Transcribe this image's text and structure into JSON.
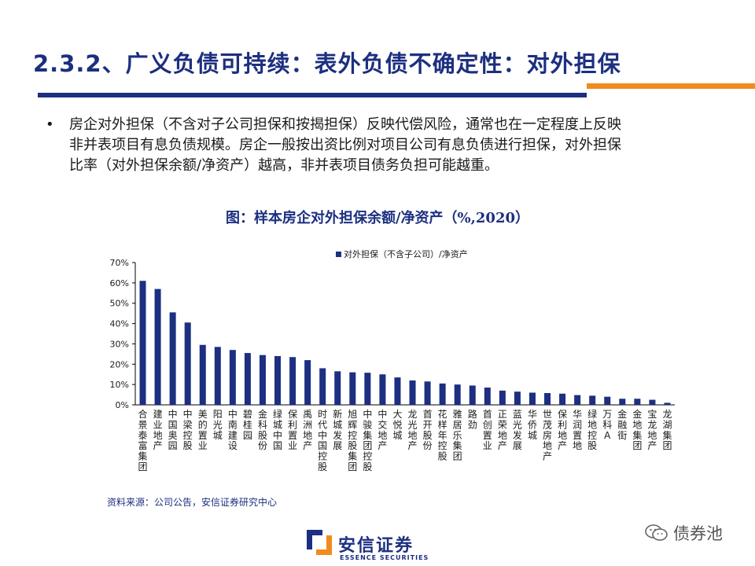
{
  "header": {
    "title": "2.3.2、广义负债可持续：表外负债不确定性：对外担保"
  },
  "bullet": {
    "marker": "•",
    "lines": [
      "房企对外担保（不含对子公司担保和按揭担保）反映代偿风险，通常也在一定程度上反映",
      "非并表项目有息负债规模。房企一般按出资比例对项目公司有息负债进行担保，对外担保",
      "比率（对外担保余额/净资产）越高，非并表项目债务负担可能越重。"
    ]
  },
  "figure": {
    "caption": "图：样本房企对外担保余额/净资产（%,2020）",
    "source": "资料来源：公司公告，安信证券研究中心"
  },
  "footer": {
    "logo_cn": "安信证券",
    "logo_en": "ESSENCE SECURITIES",
    "watermark": "债券池",
    "brand_color": "#1c2f80",
    "accent_color": "#f08c1e"
  },
  "chart_data": {
    "type": "bar",
    "title": "图：样本房企对外担保余额/净资产（%,2020）",
    "legend": {
      "position": "top",
      "entries": [
        "对外担保（不含子公司）/净资产"
      ]
    },
    "ylim": [
      0,
      70
    ],
    "yticks": [
      "0%",
      "10%",
      "20%",
      "30%",
      "40%",
      "50%",
      "60%",
      "70%"
    ],
    "grid": false,
    "bar_color": "#1c2f80",
    "categories": [
      "合景泰富集团",
      "建业地产",
      "中国奥园",
      "中梁控股",
      "美的置业",
      "阳光城",
      "中南建设",
      "碧桂园",
      "金科股份",
      "绿城中国",
      "保利置业",
      "禹洲地产",
      "时代中国控股",
      "新城发展",
      "旭辉控股集团",
      "中骏集团控股",
      "中交地产",
      "大悦城",
      "龙光地产",
      "首开股份",
      "花样年控股",
      "雅居乐集团",
      "路劲",
      "首创置业",
      "正荣地产",
      "蓝光发展",
      "华侨城",
      "世茂房地产",
      "保利地产",
      "华润置地",
      "绿地控股",
      "万科A",
      "金融街",
      "金地集团",
      "宝龙地产",
      "龙湖集团"
    ],
    "series": [
      {
        "name": "对外担保（不含子公司）/净资产",
        "values": [
          61,
          57,
          45.5,
          40.5,
          29.5,
          28.5,
          27,
          25.5,
          24.5,
          24,
          23.5,
          22,
          18,
          16.5,
          16,
          15.8,
          15,
          13.5,
          12,
          11.5,
          10.5,
          10,
          9.5,
          8.5,
          7,
          6.5,
          6,
          5.8,
          5.5,
          4.8,
          4.5,
          4,
          3,
          3,
          2.5,
          1
        ]
      }
    ]
  }
}
